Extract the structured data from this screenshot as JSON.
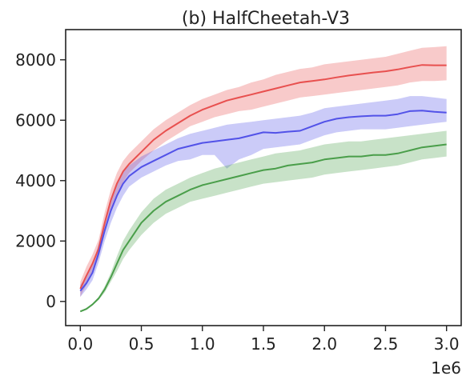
{
  "chart_data": {
    "type": "line",
    "title": "(b) HalfCheetah-V3",
    "xlabel": "",
    "ylabel": "",
    "x_offset_label": "1e6",
    "xlim": [
      -0.12,
      3.12
    ],
    "ylim": [
      -800,
      9000
    ],
    "xticks": [
      0.0,
      0.5,
      1.0,
      1.5,
      2.0,
      2.5,
      3.0
    ],
    "xtick_labels": [
      "0.0",
      "0.5",
      "1.0",
      "1.5",
      "2.0",
      "2.5",
      "3.0"
    ],
    "yticks": [
      0,
      2000,
      4000,
      6000,
      8000
    ],
    "ytick_labels": [
      "0",
      "2000",
      "4000",
      "6000",
      "8000"
    ],
    "grid": false,
    "legend": "none",
    "series": [
      {
        "color": "#e8504f",
        "x": [
          0.0,
          0.05,
          0.1,
          0.15,
          0.2,
          0.25,
          0.3,
          0.35,
          0.4,
          0.5,
          0.6,
          0.7,
          0.8,
          0.9,
          1.0,
          1.1,
          1.2,
          1.3,
          1.4,
          1.5,
          1.6,
          1.7,
          1.8,
          1.9,
          2.0,
          2.1,
          2.2,
          2.3,
          2.4,
          2.5,
          2.6,
          2.7,
          2.8,
          2.9,
          3.0
        ],
        "y": [
          420,
          850,
          1250,
          1750,
          2600,
          3350,
          3900,
          4300,
          4550,
          4950,
          5350,
          5650,
          5900,
          6150,
          6350,
          6500,
          6650,
          6750,
          6850,
          6950,
          7050,
          7150,
          7250,
          7300,
          7350,
          7420,
          7480,
          7530,
          7580,
          7620,
          7680,
          7760,
          7830,
          7820,
          7820
        ],
        "lower": [
          150,
          550,
          950,
          1450,
          2250,
          2950,
          3500,
          3950,
          4250,
          4650,
          5000,
          5300,
          5550,
          5800,
          5950,
          6100,
          6200,
          6300,
          6350,
          6450,
          6550,
          6650,
          6750,
          6800,
          6850,
          6900,
          6950,
          7000,
          7050,
          7100,
          7150,
          7250,
          7300,
          7300,
          7320
        ],
        "upper": [
          650,
          1150,
          1550,
          2050,
          2950,
          3700,
          4250,
          4650,
          4900,
          5300,
          5700,
          6000,
          6250,
          6500,
          6700,
          6850,
          7000,
          7100,
          7250,
          7350,
          7500,
          7600,
          7700,
          7750,
          7850,
          7900,
          7950,
          8000,
          8050,
          8100,
          8200,
          8300,
          8400,
          8420,
          8450
        ]
      },
      {
        "color": "#5252e8",
        "x": [
          0.0,
          0.05,
          0.1,
          0.15,
          0.2,
          0.25,
          0.3,
          0.35,
          0.4,
          0.5,
          0.6,
          0.7,
          0.8,
          0.9,
          1.0,
          1.1,
          1.2,
          1.3,
          1.4,
          1.5,
          1.6,
          1.7,
          1.8,
          1.9,
          2.0,
          2.1,
          2.2,
          2.3,
          2.4,
          2.5,
          2.6,
          2.7,
          2.8,
          2.9,
          3.0
        ],
        "y": [
          350,
          600,
          950,
          1600,
          2350,
          3000,
          3500,
          3900,
          4150,
          4450,
          4650,
          4850,
          5050,
          5150,
          5250,
          5300,
          5350,
          5400,
          5500,
          5600,
          5580,
          5620,
          5650,
          5800,
          5950,
          6050,
          6100,
          6130,
          6150,
          6150,
          6200,
          6300,
          6320,
          6280,
          6250
        ],
        "lower": [
          150,
          400,
          700,
          1300,
          2000,
          2600,
          3100,
          3500,
          3800,
          4100,
          4300,
          4500,
          4650,
          4700,
          4850,
          4850,
          4400,
          4700,
          4850,
          5050,
          5100,
          5150,
          5200,
          5350,
          5500,
          5600,
          5650,
          5700,
          5700,
          5700,
          5750,
          5800,
          5850,
          5900,
          5950
        ],
        "upper": [
          550,
          800,
          1200,
          1900,
          2700,
          3400,
          3950,
          4300,
          4500,
          4800,
          5000,
          5200,
          5400,
          5550,
          5650,
          5750,
          5850,
          5900,
          5950,
          6000,
          6050,
          6100,
          6150,
          6250,
          6400,
          6450,
          6500,
          6550,
          6600,
          6650,
          6700,
          6800,
          6800,
          6750,
          6700
        ]
      },
      {
        "color": "#4a9e4a",
        "x": [
          0.0,
          0.05,
          0.1,
          0.15,
          0.2,
          0.25,
          0.3,
          0.35,
          0.4,
          0.5,
          0.6,
          0.7,
          0.8,
          0.9,
          1.0,
          1.1,
          1.2,
          1.3,
          1.4,
          1.5,
          1.6,
          1.7,
          1.8,
          1.9,
          2.0,
          2.1,
          2.2,
          2.3,
          2.4,
          2.5,
          2.6,
          2.7,
          2.8,
          2.9,
          3.0
        ],
        "y": [
          -330,
          -250,
          -100,
          100,
          400,
          800,
          1250,
          1700,
          2000,
          2600,
          3000,
          3300,
          3500,
          3700,
          3850,
          3950,
          4050,
          4150,
          4250,
          4350,
          4400,
          4500,
          4550,
          4600,
          4700,
          4750,
          4800,
          4800,
          4850,
          4850,
          4900,
          5000,
          5100,
          5150,
          5200
        ],
        "lower": [
          -350,
          -280,
          -130,
          50,
          300,
          650,
          1000,
          1400,
          1700,
          2200,
          2600,
          2900,
          3100,
          3300,
          3400,
          3500,
          3600,
          3700,
          3800,
          3900,
          3950,
          4000,
          4050,
          4100,
          4200,
          4250,
          4300,
          4350,
          4400,
          4450,
          4500,
          4600,
          4700,
          4750,
          4800
        ],
        "upper": [
          -310,
          -220,
          -70,
          150,
          500,
          950,
          1500,
          2000,
          2350,
          2950,
          3400,
          3700,
          3900,
          4100,
          4250,
          4400,
          4500,
          4600,
          4700,
          4800,
          4900,
          4950,
          5000,
          5100,
          5200,
          5250,
          5300,
          5300,
          5350,
          5400,
          5450,
          5500,
          5550,
          5600,
          5650
        ]
      }
    ]
  }
}
